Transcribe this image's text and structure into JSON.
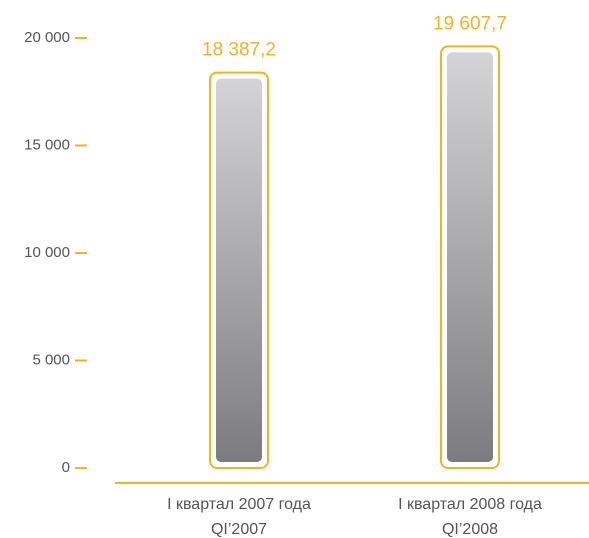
{
  "chart_data": {
    "type": "bar",
    "categories": [
      [
        "I квартал 2007 года",
        "QI’2007"
      ],
      [
        "I квартал 2008 года",
        "QI’2008"
      ]
    ],
    "values": [
      18387.2,
      19607.7
    ],
    "value_labels": [
      "18 387,2",
      "19 607,7"
    ],
    "color": "#f0b323",
    "ylim": [
      0,
      20000
    ],
    "yticks": [
      0,
      {
        "value": 5000,
        "label": "5 000"
      },
      {
        "value": 10000,
        "label": "10 000"
      },
      {
        "value": 15000,
        "label": "15 000"
      },
      {
        "value": 20000,
        "label": "20 000"
      }
    ]
  }
}
